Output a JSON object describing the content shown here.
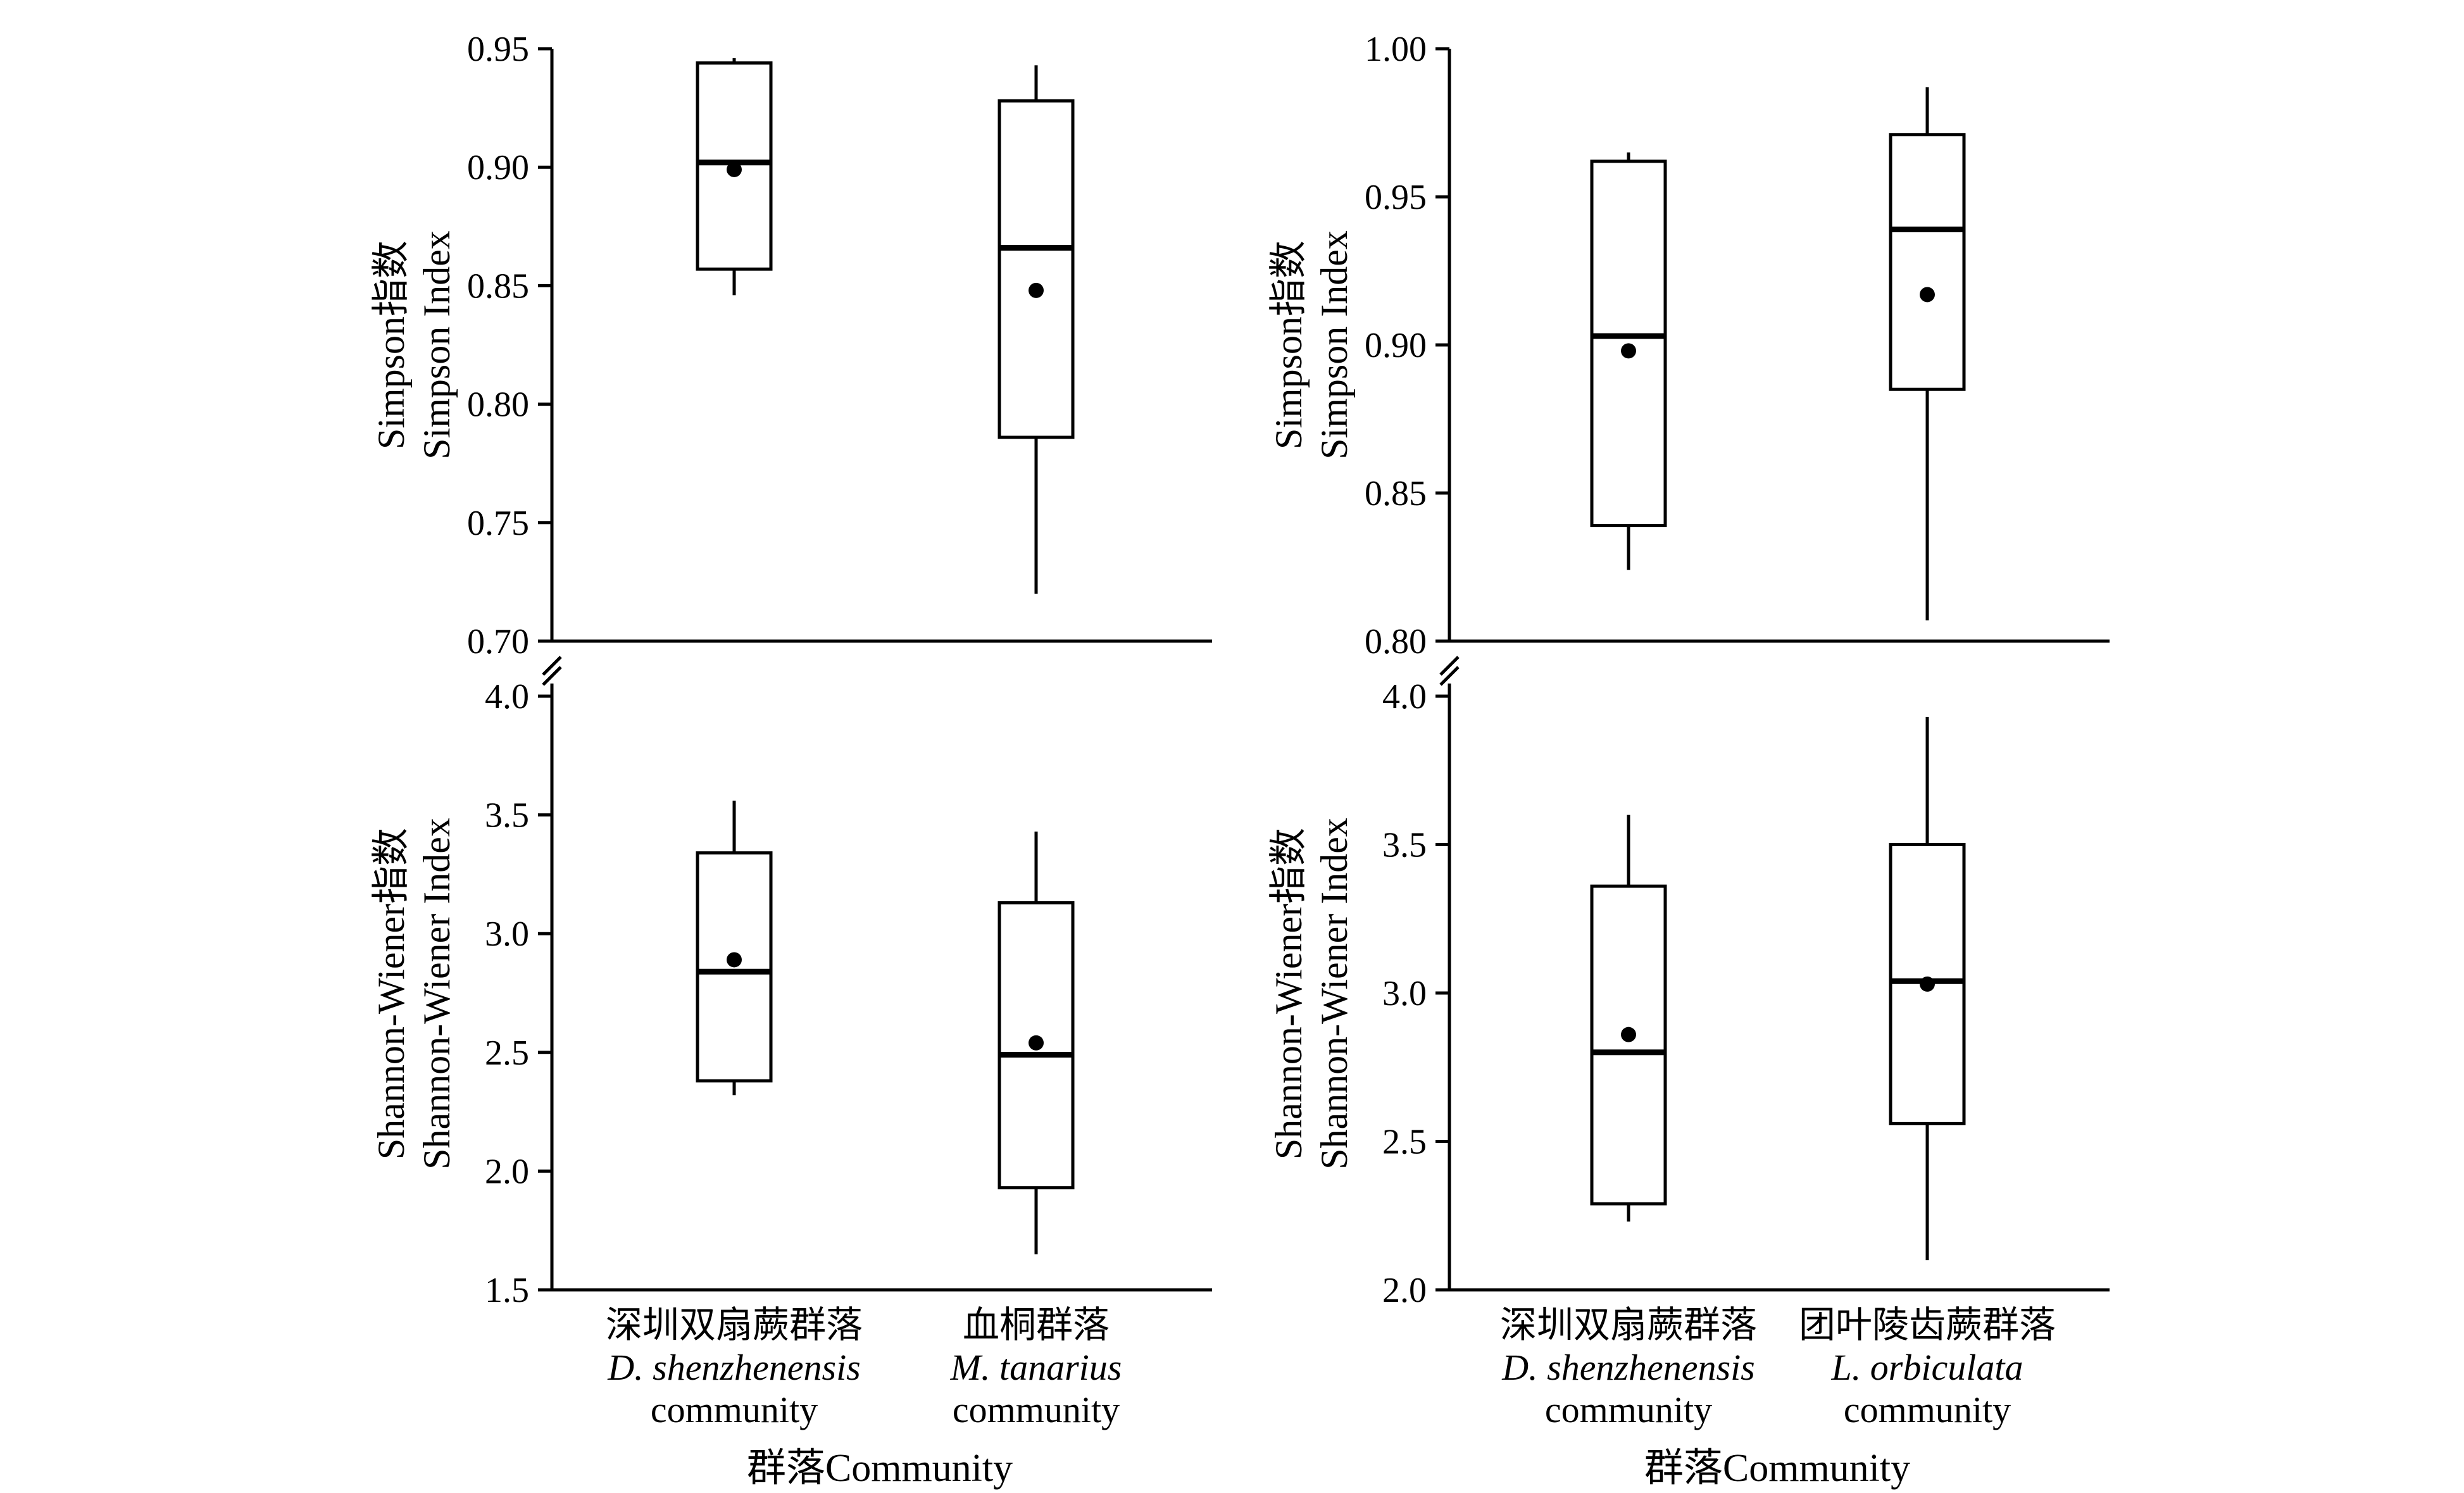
{
  "chart_data": [
    {
      "type": "box",
      "panel": "top-left",
      "ylabel_cn": "Simpson指数",
      "ylabel_en": "Simpson Index",
      "ylim": [
        0.7,
        0.95
      ],
      "yticks": [
        "0.70",
        "0.75",
        "0.80",
        "0.85",
        "0.90",
        "0.95"
      ],
      "categories": [
        "深圳双扇蕨群落",
        "血桐群落"
      ],
      "boxes": [
        {
          "whisker_low": 0.846,
          "q1": 0.857,
          "median": 0.902,
          "q3": 0.944,
          "whisker_high": 0.946,
          "mean": 0.899
        },
        {
          "whisker_low": 0.72,
          "q1": 0.786,
          "median": 0.866,
          "q3": 0.928,
          "whisker_high": 0.943,
          "mean": 0.848
        }
      ]
    },
    {
      "type": "box",
      "panel": "top-right",
      "ylabel_cn": "Simpson指数",
      "ylabel_en": "Simpson Index",
      "ylim": [
        0.8,
        1.0
      ],
      "yticks": [
        "0.80",
        "0.85",
        "0.90",
        "0.95",
        "1.00"
      ],
      "categories": [
        "深圳双扇蕨群落",
        "团叶陵齿蕨群落"
      ],
      "boxes": [
        {
          "whisker_low": 0.824,
          "q1": 0.839,
          "median": 0.903,
          "q3": 0.962,
          "whisker_high": 0.965,
          "mean": 0.898
        },
        {
          "whisker_low": 0.807,
          "q1": 0.885,
          "median": 0.939,
          "q3": 0.971,
          "whisker_high": 0.987,
          "mean": 0.917
        }
      ]
    },
    {
      "type": "box",
      "panel": "bottom-left",
      "ylabel_cn": "Shannon-Wiener指数",
      "ylabel_en": "Shannon-Wiener Index",
      "ylim": [
        1.5,
        4.0
      ],
      "yticks": [
        "1.5",
        "2.0",
        "2.5",
        "3.0",
        "3.5",
        "4.0"
      ],
      "categories": [
        "深圳双扇蕨群落",
        "血桐群落"
      ],
      "category_species": [
        "D. shenzhenensis",
        "M. tanarius"
      ],
      "category_suffix": "community",
      "xlabel": "群落Community",
      "boxes": [
        {
          "whisker_low": 2.32,
          "q1": 2.38,
          "median": 2.84,
          "q3": 3.34,
          "whisker_high": 3.56,
          "mean": 2.89
        },
        {
          "whisker_low": 1.65,
          "q1": 1.93,
          "median": 2.49,
          "q3": 3.13,
          "whisker_high": 3.43,
          "mean": 2.54
        }
      ]
    },
    {
      "type": "box",
      "panel": "bottom-right",
      "ylabel_cn": "Shannon-Wiener指数",
      "ylabel_en": "Shannon-Wiener Index",
      "ylim": [
        2.0,
        4.0
      ],
      "yticks": [
        "2.0",
        "2.5",
        "3.0",
        "3.5",
        "4.0"
      ],
      "categories": [
        "深圳双扇蕨群落",
        "团叶陵齿蕨群落"
      ],
      "category_species": [
        "D. shenzhenensis",
        "L. orbiculata"
      ],
      "category_suffix": "community",
      "xlabel": "群落Community",
      "boxes": [
        {
          "whisker_low": 2.23,
          "q1": 2.29,
          "median": 2.8,
          "q3": 3.36,
          "whisker_high": 3.6,
          "mean": 2.86
        },
        {
          "whisker_low": 2.1,
          "q1": 2.56,
          "median": 3.04,
          "q3": 3.5,
          "whisker_high": 3.93,
          "mean": 3.03
        }
      ]
    }
  ]
}
